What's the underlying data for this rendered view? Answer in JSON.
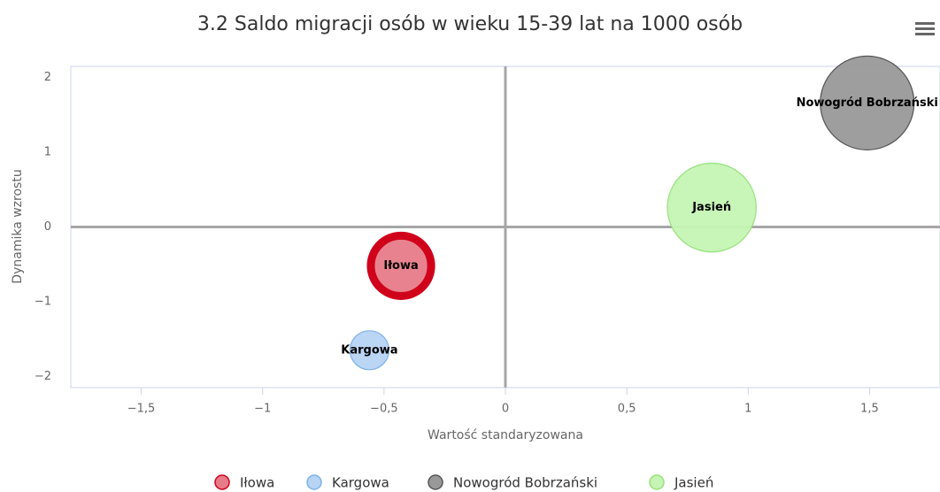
{
  "chart_data": {
    "type": "bubble",
    "title": "3.2 Saldo migracji osób w wieku 15-39 lat na 1000 osób",
    "x_axis_label": "Wartość standaryzowana",
    "y_axis_label": "Dynamika wzrostu",
    "xlim": [
      -1.79,
      1.79
    ],
    "ylim": [
      -2.15,
      2.15
    ],
    "xticks": [
      {
        "value": -1.5,
        "label": "−1,5"
      },
      {
        "value": -1,
        "label": "−1"
      },
      {
        "value": -0.5,
        "label": "−0,5"
      },
      0,
      {
        "value": 0.5,
        "label": "0,5"
      },
      1,
      {
        "value": 1.5,
        "label": "1,5"
      }
    ],
    "yticks": [
      {
        "value": -2,
        "label": "−2"
      },
      {
        "value": -1,
        "label": "−1"
      },
      0,
      1,
      2
    ],
    "x_plot_line": 0,
    "y_plot_line": 0,
    "series": [
      {
        "name": "Iłowa",
        "color": "#e87b89",
        "stroke": "#d0021b",
        "x": [
          -0.43
        ],
        "values": [
          -0.52
        ],
        "sizes": [
          2.4
        ]
      },
      {
        "name": "Kargowa",
        "color": "#b7d4f4",
        "stroke": "#7fb2e8",
        "x": [
          -0.56
        ],
        "values": [
          -1.65
        ],
        "sizes": [
          1
        ]
      },
      {
        "name": "Nowogród Bobrzański",
        "color": "#999999",
        "stroke": "#555555",
        "x": [
          1.49
        ],
        "values": [
          1.66
        ],
        "sizes": [
          5.8
        ]
      },
      {
        "name": "Jasień",
        "color": "#c5f4b4",
        "stroke": "#95e27a",
        "x": [
          0.85
        ],
        "values": [
          0.26
        ],
        "sizes": [
          5.2
        ]
      }
    ]
  }
}
